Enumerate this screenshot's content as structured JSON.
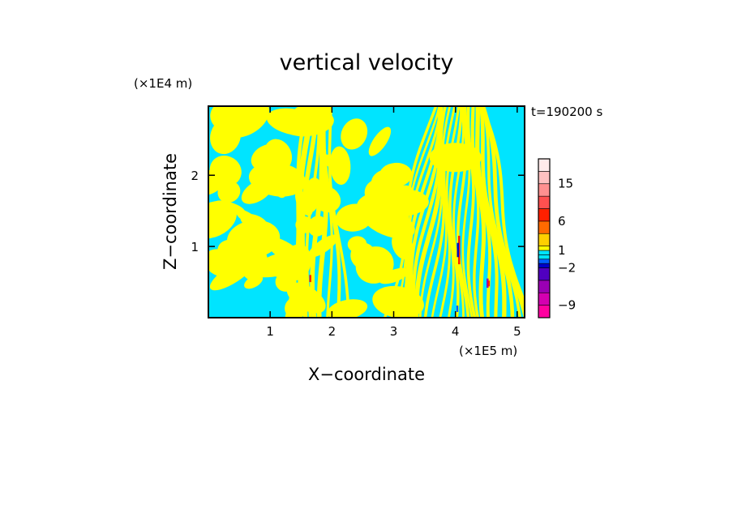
{
  "chart_data": {
    "type": "heatmap",
    "title": "vertical velocity",
    "xlabel": "X−coordinate",
    "ylabel": "Z−coordinate",
    "x_unit": "(×1E5 m)",
    "y_unit": "(×1E4 m)",
    "time_label": "t=190200 s",
    "xlim": [
      0,
      5.12
    ],
    "ylim": [
      0,
      2.97
    ],
    "x_ticks": [
      1,
      2,
      3,
      4,
      5
    ],
    "y_ticks": [
      1,
      2
    ],
    "x_tick_labels": [
      "1",
      "2",
      "3",
      "4",
      "5"
    ],
    "y_tick_labels": [
      "1",
      "2"
    ],
    "colorbar": {
      "levels": [
        -12,
        -9,
        -6,
        -4,
        -2,
        -1,
        0,
        0.5,
        1,
        2,
        4,
        6,
        9,
        12,
        15,
        18,
        21
      ],
      "colors": [
        "#ff00a0",
        "#d400b0",
        "#9a00b4",
        "#5000c0",
        "#0000c8",
        "#0060ff",
        "#00e4ff",
        "#00e4ff",
        "#ffff00",
        "#ffd000",
        "#ff6a00",
        "#ff2000",
        "#ff5050",
        "#ff9090",
        "#ffc0c0",
        "#ffeaea"
      ],
      "tick_values": [
        15,
        6,
        1,
        -2,
        -9
      ],
      "tick_labels": [
        "15",
        "6",
        "1",
        "−2",
        "−9"
      ]
    },
    "legend": "right",
    "grid": false,
    "field_colors": {
      "positive": "#ffff00",
      "negative": "#00e4ff"
    }
  }
}
